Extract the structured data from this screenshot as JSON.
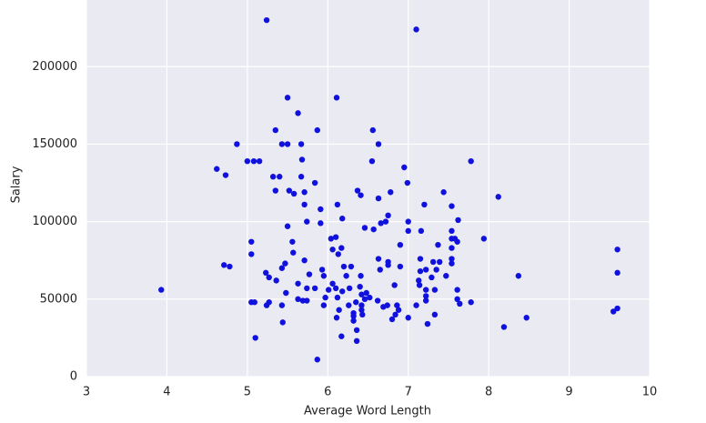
{
  "chart_data": {
    "type": "scatter",
    "xlabel": "Average Word Length",
    "ylabel": "Salary",
    "color": "#1111dd",
    "x": [
      3.93,
      4.62,
      4.73,
      4.71,
      4.78,
      4.87,
      5.0,
      5.08,
      5.15,
      5.05,
      5.05,
      5.05,
      5.09,
      5.1,
      5.24,
      5.23,
      5.27,
      5.27,
      5.24,
      5.32,
      5.35,
      5.35,
      5.4,
      5.36,
      5.43,
      5.5,
      5.43,
      5.47,
      5.48,
      5.43,
      5.44,
      5.5,
      5.5,
      5.52,
      5.58,
      5.56,
      5.57,
      5.63,
      5.67,
      5.68,
      5.67,
      5.71,
      5.71,
      5.63,
      5.63,
      5.69,
      5.71,
      5.74,
      5.77,
      5.74,
      5.74,
      5.84,
      5.84,
      5.87,
      5.87,
      5.91,
      5.91,
      5.93,
      5.95,
      5.95,
      5.97,
      6.01,
      6.04,
      6.06,
      6.06,
      6.1,
      6.1,
      6.12,
      6.11,
      6.11,
      6.12,
      6.13,
      6.14,
      6.17,
      6.18,
      6.18,
      6.17,
      6.2,
      6.23,
      6.26,
      6.27,
      6.29,
      6.32,
      6.32,
      6.32,
      6.35,
      6.36,
      6.36,
      6.37,
      6.4,
      6.41,
      6.41,
      6.42,
      6.42,
      6.42,
      6.43,
      6.46,
      6.46,
      6.48,
      6.52,
      6.55,
      6.56,
      6.57,
      6.62,
      6.63,
      6.63,
      6.63,
      6.65,
      6.66,
      6.69,
      6.72,
      6.74,
      6.75,
      6.75,
      6.75,
      6.78,
      6.8,
      6.83,
      6.84,
      6.86,
      6.88,
      6.9,
      6.9,
      6.95,
      6.99,
      7.0,
      7.0,
      7.0,
      7.1,
      7.1,
      7.13,
      7.14,
      7.15,
      7.15,
      7.16,
      7.2,
      7.22,
      7.22,
      7.22,
      7.22,
      7.24,
      7.29,
      7.31,
      7.33,
      7.33,
      7.35,
      7.37,
      7.39,
      7.44,
      7.47,
      7.54,
      7.54,
      7.54,
      7.54,
      7.54,
      7.54,
      7.58,
      7.61,
      7.62,
      7.61,
      7.61,
      7.64,
      7.78,
      7.78,
      7.94,
      8.12,
      8.19,
      8.37,
      8.47,
      9.55,
      9.6,
      9.6,
      9.6
    ],
    "values": [
      56000,
      134000,
      130000,
      72000,
      71000,
      150000,
      139000,
      139000,
      139000,
      87000,
      79000,
      48000,
      48000,
      25000,
      230000,
      67000,
      64000,
      48000,
      46000,
      129000,
      159000,
      120000,
      129000,
      62000,
      150000,
      150000,
      70000,
      73000,
      54000,
      46000,
      35000,
      180000,
      97000,
      120000,
      118000,
      87000,
      80000,
      170000,
      150000,
      140000,
      129000,
      119000,
      111000,
      60000,
      50000,
      49000,
      75000,
      100000,
      66000,
      57000,
      49000,
      125000,
      57000,
      159000,
      11000,
      108000,
      99000,
      69000,
      65000,
      46000,
      51000,
      56000,
      89000,
      82000,
      60000,
      90000,
      57000,
      51000,
      38000,
      180000,
      111000,
      79000,
      43000,
      83000,
      102000,
      55000,
      26000,
      71000,
      65000,
      46000,
      57000,
      71000,
      41000,
      36000,
      39000,
      48000,
      30000,
      23000,
      120000,
      58000,
      117000,
      65000,
      53000,
      46000,
      43000,
      40000,
      96000,
      50000,
      54000,
      51000,
      139000,
      159000,
      95000,
      49000,
      150000,
      115000,
      76000,
      69000,
      99000,
      45000,
      100000,
      46000,
      104000,
      74000,
      72000,
      119000,
      37000,
      59000,
      40000,
      46000,
      43000,
      71000,
      85000,
      135000,
      125000,
      100000,
      94000,
      38000,
      224000,
      46000,
      62000,
      59000,
      76000,
      68000,
      94000,
      111000,
      69000,
      56000,
      52000,
      49000,
      34000,
      64000,
      74000,
      40000,
      56000,
      69000,
      85000,
      74000,
      119000,
      65000,
      110000,
      94000,
      89000,
      83000,
      76000,
      73000,
      89000,
      87000,
      101000,
      56000,
      50000,
      47000,
      139000,
      48000,
      89000,
      116000,
      32000,
      65000,
      38000,
      42000,
      82000,
      67000,
      44000
    ],
    "xlim": [
      3,
      10
    ],
    "ylim": [
      0,
      243000
    ],
    "xticks": [
      3,
      4,
      5,
      6,
      7,
      8,
      9,
      10
    ],
    "yticks": [
      0,
      50000,
      100000,
      150000,
      200000
    ],
    "grid": true
  }
}
